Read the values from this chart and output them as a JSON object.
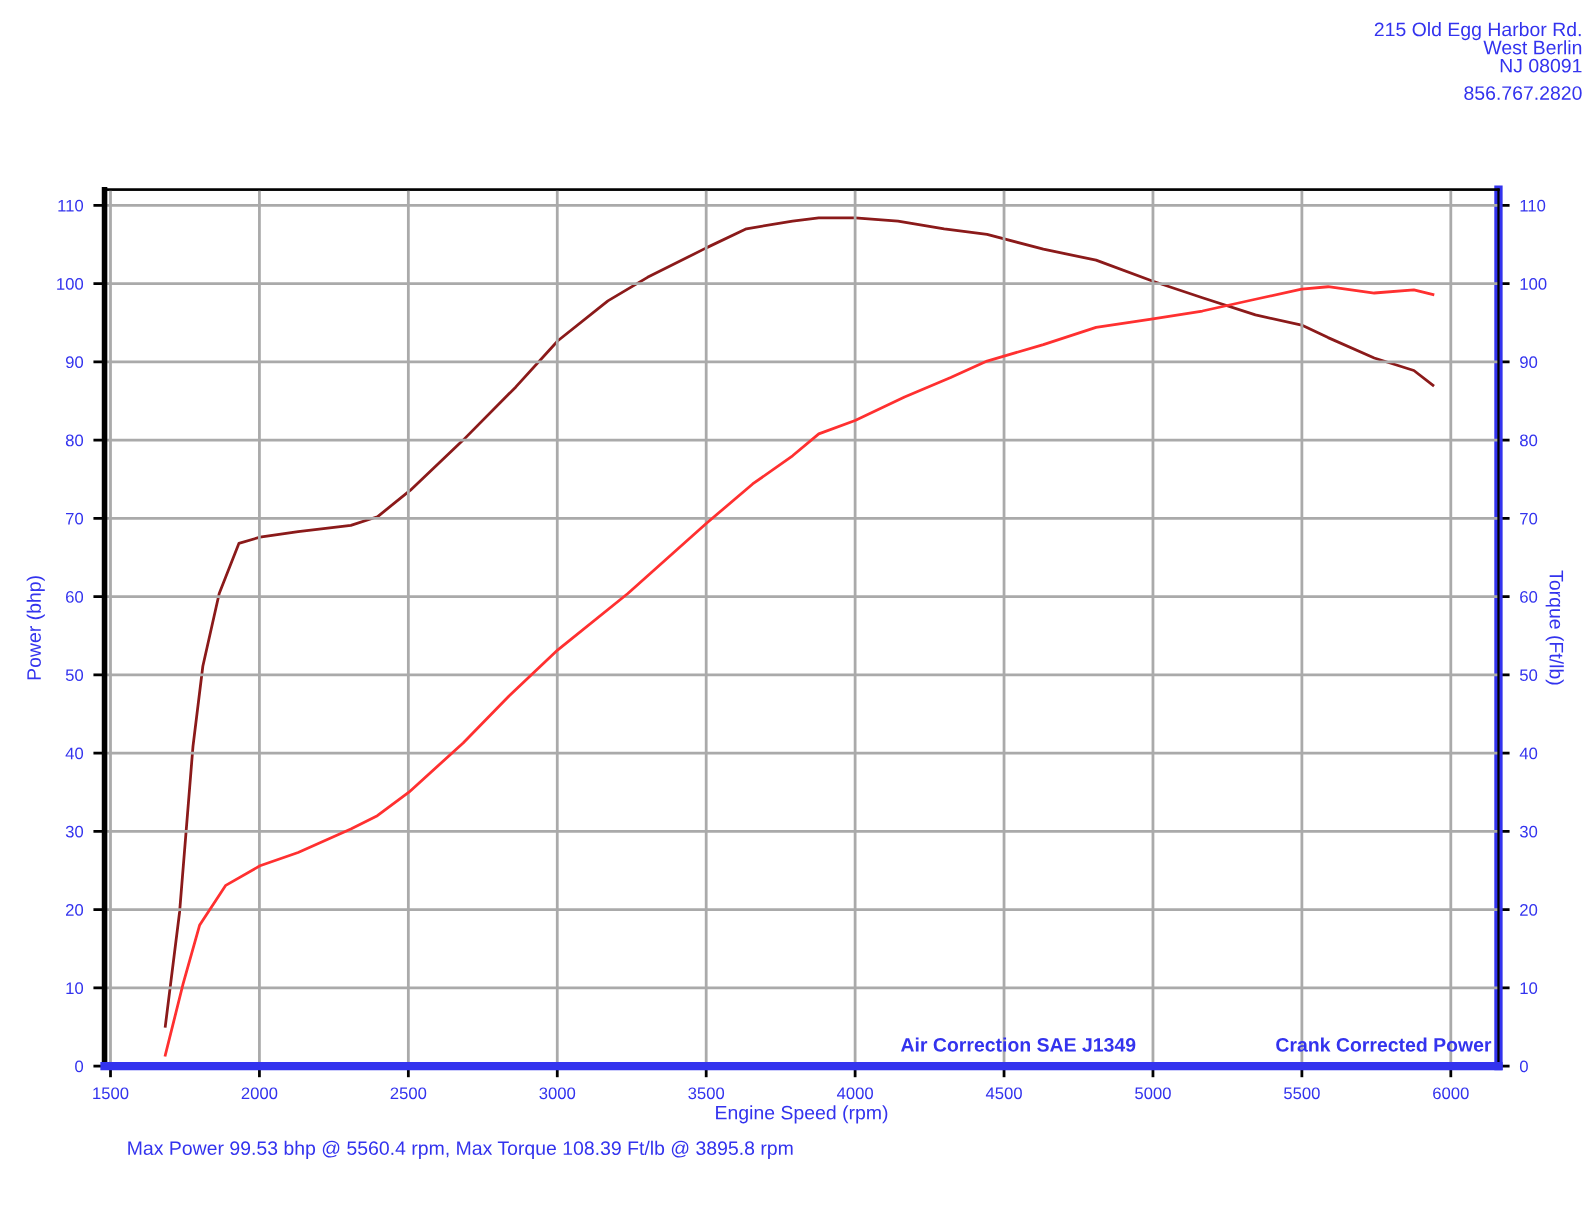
{
  "chart_data": {
    "type": "line",
    "xlabel": "Engine Speed (rpm)",
    "ylabel": "Power (bhp)",
    "y2label": "Torque (Ft/lb)",
    "xlim": [
      1480,
      6160
    ],
    "xticks": [
      1500,
      2000,
      2500,
      3000,
      3500,
      4000,
      4500,
      5000,
      5500,
      6000
    ],
    "ylim": [
      0,
      112
    ],
    "yticks": [
      0,
      10,
      20,
      30,
      40,
      50,
      60,
      70,
      80,
      90,
      100,
      110
    ],
    "y2lim": [
      0,
      112
    ],
    "y2ticks": [
      0,
      10,
      20,
      30,
      40,
      50,
      60,
      70,
      80,
      90,
      100,
      110
    ],
    "grid": true,
    "marker": "none",
    "line_style": "solid",
    "series": [
      {
        "color": "#8b1a1a",
        "axis": "y2",
        "x": [
          1684,
          1732,
          1777,
          1810,
          1865,
          1931,
          2002,
          2130,
          2307,
          2396,
          2507,
          2684,
          2861,
          3002,
          3170,
          3303,
          3502,
          3635,
          3790,
          3878,
          4000,
          4144,
          4299,
          4443,
          4632,
          4809,
          5000,
          5166,
          5344,
          5499,
          5588,
          5743,
          5876,
          5940
        ],
        "values": [
          5.1,
          19.7,
          40.9,
          51.1,
          60.4,
          66.8,
          67.6,
          68.3,
          69.1,
          70.2,
          73.6,
          80,
          86.8,
          92.7,
          97.8,
          100.8,
          104.6,
          107,
          108,
          108.4,
          108.4,
          108,
          107,
          106.3,
          104.4,
          103,
          100.3,
          98.2,
          96,
          94.7,
          93.1,
          90.5,
          88.9,
          87
        ]
      },
      {
        "color": "#ff3030",
        "axis": "y",
        "x": [
          1684,
          1743,
          1799,
          1887,
          2002,
          2130,
          2307,
          2396,
          2502,
          2684,
          2838,
          3002,
          3237,
          3502,
          3656,
          3790,
          3878,
          4000,
          4166,
          4321,
          4443,
          4632,
          4809,
          5000,
          5166,
          5344,
          5499,
          5588,
          5743,
          5876,
          5940
        ],
        "values": [
          1.4,
          10.4,
          18,
          23.1,
          25.6,
          27.3,
          30.3,
          32,
          35,
          41.3,
          47.3,
          53.2,
          60.4,
          69.4,
          74.4,
          78,
          80.8,
          82.5,
          85.5,
          88,
          90.1,
          92.2,
          94.4,
          95.5,
          96.5,
          98,
          99.3,
          99.6,
          98.8,
          99.2,
          98.6
        ]
      }
    ],
    "annotations": [
      "Air Correction SAE J1349",
      "Crank Corrected Power",
      "Max Power 99.53 bhp @ 5560.4 rpm, Max Torque 108.39 Ft/lb @ 3895.8 rpm",
      "215 Old Egg Harbor Rd.\nWest Berlin\nNJ 08091",
      "856.767.2820"
    ]
  }
}
